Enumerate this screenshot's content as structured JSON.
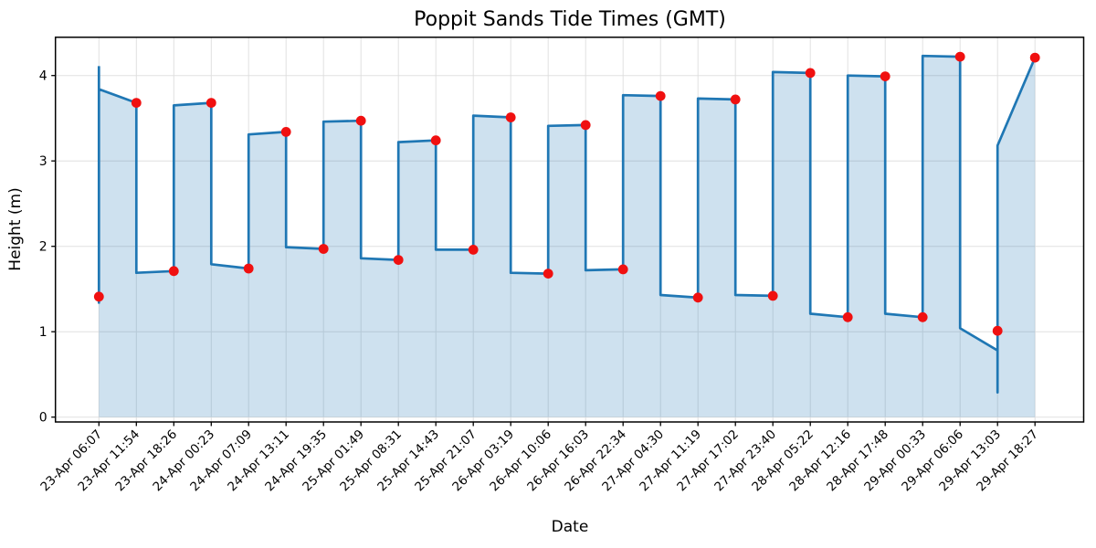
{
  "chart_data": {
    "type": "line",
    "title": "Poppit Sands Tide Times (GMT)",
    "xlabel": "Date",
    "ylabel": "Height (m)",
    "categories": [
      "23-Apr 06:07",
      "23-Apr 11:54",
      "23-Apr 18:26",
      "24-Apr 00:23",
      "24-Apr 07:09",
      "24-Apr 13:11",
      "24-Apr 19:35",
      "25-Apr 01:49",
      "25-Apr 08:31",
      "25-Apr 14:43",
      "25-Apr 21:07",
      "26-Apr 03:19",
      "26-Apr 10:06",
      "26-Apr 16:03",
      "26-Apr 22:34",
      "27-Apr 04:30",
      "27-Apr 11:19",
      "27-Apr 17:02",
      "27-Apr 23:40",
      "28-Apr 05:22",
      "28-Apr 12:16",
      "28-Apr 17:48",
      "29-Apr 00:33",
      "29-Apr 06:06",
      "29-Apr 13:03",
      "29-Apr 18:27"
    ],
    "series": [
      {
        "name": "tide height curve (line with area fill)",
        "vertices": [
          [
            0,
            4.11
          ],
          [
            0,
            1.34
          ],
          [
            0,
            3.84
          ],
          [
            1,
            3.68
          ],
          [
            1,
            1.69
          ],
          [
            2,
            1.71
          ],
          [
            2,
            3.65
          ],
          [
            3,
            3.68
          ],
          [
            3,
            1.79
          ],
          [
            4,
            1.74
          ],
          [
            4,
            3.31
          ],
          [
            5,
            3.34
          ],
          [
            5,
            1.99
          ],
          [
            6,
            1.97
          ],
          [
            6,
            3.46
          ],
          [
            7,
            3.47
          ],
          [
            7,
            1.86
          ],
          [
            8,
            1.84
          ],
          [
            8,
            3.22
          ],
          [
            9,
            3.24
          ],
          [
            9,
            1.96
          ],
          [
            10,
            1.96
          ],
          [
            10,
            3.53
          ],
          [
            11,
            3.51
          ],
          [
            11,
            1.69
          ],
          [
            12,
            1.68
          ],
          [
            12,
            3.41
          ],
          [
            13,
            3.42
          ],
          [
            13,
            1.72
          ],
          [
            14,
            1.73
          ],
          [
            14,
            3.77
          ],
          [
            15,
            3.76
          ],
          [
            15,
            1.43
          ],
          [
            16,
            1.4
          ],
          [
            16,
            3.73
          ],
          [
            17,
            3.72
          ],
          [
            17,
            1.43
          ],
          [
            18,
            1.42
          ],
          [
            18,
            4.04
          ],
          [
            19,
            4.03
          ],
          [
            19,
            1.21
          ],
          [
            20,
            1.17
          ],
          [
            20,
            4.0
          ],
          [
            21,
            3.99
          ],
          [
            21,
            1.21
          ],
          [
            22,
            1.17
          ],
          [
            22,
            4.23
          ],
          [
            23,
            4.22
          ],
          [
            23,
            1.04
          ],
          [
            24,
            0.78
          ],
          [
            24,
            0.29
          ],
          [
            24,
            3.18
          ],
          [
            25,
            4.21
          ]
        ]
      },
      {
        "name": "tide extremes (red markers, one per tick)",
        "values": [
          1.41,
          3.68,
          1.71,
          3.68,
          1.74,
          3.34,
          1.97,
          3.47,
          1.84,
          3.24,
          1.96,
          3.51,
          1.68,
          3.42,
          1.73,
          3.76,
          1.4,
          3.72,
          1.42,
          4.03,
          1.17,
          3.99,
          1.17,
          4.22,
          1.01,
          4.21
        ]
      }
    ],
    "yticks": [
      0,
      1,
      2,
      3,
      4
    ],
    "ytick_labels": [
      "0",
      "1",
      "2",
      "3",
      "4"
    ],
    "ylim": [
      -0.057,
      4.448
    ],
    "xlim": [
      -1.16,
      26.3
    ],
    "fill_baseline": 0,
    "grid": true,
    "legend_position": "none",
    "colors": {
      "line": "#1f77b4",
      "fill": "rgba(31,119,180,0.22)",
      "marker": "#f01010",
      "grid": "#e0e0e0",
      "spine": "#000000",
      "text": "#000000"
    }
  }
}
